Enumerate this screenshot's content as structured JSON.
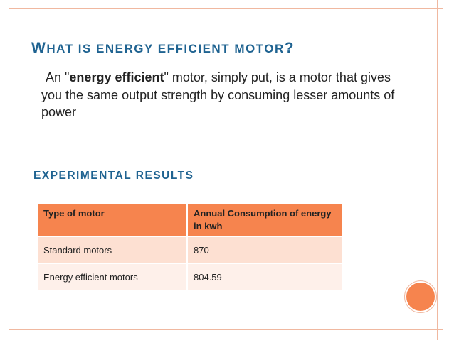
{
  "slide": {
    "title_parts": [
      {
        "text": "W",
        "style": "big"
      },
      {
        "text": "HAT ",
        "style": "sc"
      },
      {
        "text": "IS ",
        "style": "sc"
      },
      {
        "text": "ENERGY ",
        "style": "sc"
      },
      {
        "text": "EFFICIENT ",
        "style": "sc"
      },
      {
        "text": "MOTOR",
        "style": "sc"
      },
      {
        "text": "?",
        "style": "big"
      }
    ],
    "paragraph": {
      "before": "An \"",
      "bold": "energy efficient",
      "after": "\" motor, simply put, is a motor that gives you the same output strength by consuming lesser amounts of power"
    },
    "subheading": "EXPERIMENTAL RESULTS",
    "table": {
      "headers": [
        "Type of motor",
        "Annual Consumption of energy in kwh"
      ],
      "rows": [
        [
          "Standard motors",
          "870"
        ],
        [
          "Energy efficient motors",
          "804.59"
        ]
      ]
    },
    "colors": {
      "title": "#1f6391",
      "accent_orange": "#f6844e",
      "row_light_1": "#fde0d2",
      "row_light_2": "#fef0ea",
      "border_line": "#f0b8a0"
    }
  }
}
